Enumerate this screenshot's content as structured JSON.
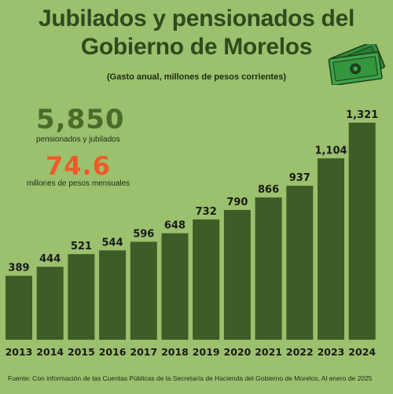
{
  "title_line1": "Jubilados y pensionados del",
  "title_line2": "Gobierno de Morelos",
  "subtitle": "(Gasto anual, millones de pesos corrientes)",
  "stats": {
    "count_value": "5,850",
    "count_label": "pensionados y jubilados",
    "monthly_value": "74.6",
    "monthly_label": "millones de pesos mensuales"
  },
  "source": "Fuente: Con información de las Cuentas Públicas de la  Secretaría de Hacienda del Gobierno de Morelos, Al enero de 2025",
  "colors": {
    "background": "#9bc06e",
    "bar": "#3f5b26",
    "accent": "#f05a28"
  },
  "icons": [
    "money-bill-icon"
  ],
  "chart_data": {
    "type": "bar",
    "categories": [
      "2013",
      "2014",
      "2015",
      "2016",
      "2017",
      "2018",
      "2019",
      "2020",
      "2021",
      "2022",
      "2023",
      "2024"
    ],
    "values": [
      389,
      444,
      521,
      544,
      596,
      648,
      732,
      790,
      866,
      937,
      1104,
      1321
    ],
    "value_labels": [
      "389",
      "444",
      "521",
      "544",
      "596",
      "648",
      "732",
      "790",
      "866",
      "937",
      "1,104",
      "1,321"
    ],
    "title": "Jubilados y pensionados del Gobierno de Morelos",
    "subtitle": "(Gasto anual, millones de pesos corrientes)",
    "xlabel": "",
    "ylabel": "",
    "ylim": [
      0,
      1321
    ],
    "grid": false,
    "legend": "none"
  }
}
